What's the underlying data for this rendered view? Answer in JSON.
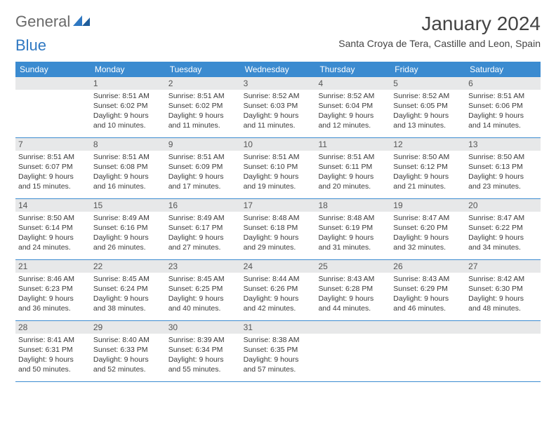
{
  "logo": {
    "part1": "General",
    "part2": "Blue"
  },
  "title": "January 2024",
  "location": "Santa Croya de Tera, Castille and Leon, Spain",
  "colors": {
    "header_bg": "#3b8bd0",
    "header_text": "#ffffff",
    "daynum_bg": "#e7e8e9",
    "daynum_text": "#555555",
    "body_text": "#3a3a3a",
    "rule": "#3b8bd0",
    "logo_gray": "#6a6a6a",
    "logo_blue": "#2f78c2"
  },
  "day_headers": [
    "Sunday",
    "Monday",
    "Tuesday",
    "Wednesday",
    "Thursday",
    "Friday",
    "Saturday"
  ],
  "weeks": [
    [
      {
        "n": "",
        "lines": []
      },
      {
        "n": "1",
        "lines": [
          "Sunrise: 8:51 AM",
          "Sunset: 6:02 PM",
          "Daylight: 9 hours",
          "and 10 minutes."
        ]
      },
      {
        "n": "2",
        "lines": [
          "Sunrise: 8:51 AM",
          "Sunset: 6:02 PM",
          "Daylight: 9 hours",
          "and 11 minutes."
        ]
      },
      {
        "n": "3",
        "lines": [
          "Sunrise: 8:52 AM",
          "Sunset: 6:03 PM",
          "Daylight: 9 hours",
          "and 11 minutes."
        ]
      },
      {
        "n": "4",
        "lines": [
          "Sunrise: 8:52 AM",
          "Sunset: 6:04 PM",
          "Daylight: 9 hours",
          "and 12 minutes."
        ]
      },
      {
        "n": "5",
        "lines": [
          "Sunrise: 8:52 AM",
          "Sunset: 6:05 PM",
          "Daylight: 9 hours",
          "and 13 minutes."
        ]
      },
      {
        "n": "6",
        "lines": [
          "Sunrise: 8:51 AM",
          "Sunset: 6:06 PM",
          "Daylight: 9 hours",
          "and 14 minutes."
        ]
      }
    ],
    [
      {
        "n": "7",
        "lines": [
          "Sunrise: 8:51 AM",
          "Sunset: 6:07 PM",
          "Daylight: 9 hours",
          "and 15 minutes."
        ]
      },
      {
        "n": "8",
        "lines": [
          "Sunrise: 8:51 AM",
          "Sunset: 6:08 PM",
          "Daylight: 9 hours",
          "and 16 minutes."
        ]
      },
      {
        "n": "9",
        "lines": [
          "Sunrise: 8:51 AM",
          "Sunset: 6:09 PM",
          "Daylight: 9 hours",
          "and 17 minutes."
        ]
      },
      {
        "n": "10",
        "lines": [
          "Sunrise: 8:51 AM",
          "Sunset: 6:10 PM",
          "Daylight: 9 hours",
          "and 19 minutes."
        ]
      },
      {
        "n": "11",
        "lines": [
          "Sunrise: 8:51 AM",
          "Sunset: 6:11 PM",
          "Daylight: 9 hours",
          "and 20 minutes."
        ]
      },
      {
        "n": "12",
        "lines": [
          "Sunrise: 8:50 AM",
          "Sunset: 6:12 PM",
          "Daylight: 9 hours",
          "and 21 minutes."
        ]
      },
      {
        "n": "13",
        "lines": [
          "Sunrise: 8:50 AM",
          "Sunset: 6:13 PM",
          "Daylight: 9 hours",
          "and 23 minutes."
        ]
      }
    ],
    [
      {
        "n": "14",
        "lines": [
          "Sunrise: 8:50 AM",
          "Sunset: 6:14 PM",
          "Daylight: 9 hours",
          "and 24 minutes."
        ]
      },
      {
        "n": "15",
        "lines": [
          "Sunrise: 8:49 AM",
          "Sunset: 6:16 PM",
          "Daylight: 9 hours",
          "and 26 minutes."
        ]
      },
      {
        "n": "16",
        "lines": [
          "Sunrise: 8:49 AM",
          "Sunset: 6:17 PM",
          "Daylight: 9 hours",
          "and 27 minutes."
        ]
      },
      {
        "n": "17",
        "lines": [
          "Sunrise: 8:48 AM",
          "Sunset: 6:18 PM",
          "Daylight: 9 hours",
          "and 29 minutes."
        ]
      },
      {
        "n": "18",
        "lines": [
          "Sunrise: 8:48 AM",
          "Sunset: 6:19 PM",
          "Daylight: 9 hours",
          "and 31 minutes."
        ]
      },
      {
        "n": "19",
        "lines": [
          "Sunrise: 8:47 AM",
          "Sunset: 6:20 PM",
          "Daylight: 9 hours",
          "and 32 minutes."
        ]
      },
      {
        "n": "20",
        "lines": [
          "Sunrise: 8:47 AM",
          "Sunset: 6:22 PM",
          "Daylight: 9 hours",
          "and 34 minutes."
        ]
      }
    ],
    [
      {
        "n": "21",
        "lines": [
          "Sunrise: 8:46 AM",
          "Sunset: 6:23 PM",
          "Daylight: 9 hours",
          "and 36 minutes."
        ]
      },
      {
        "n": "22",
        "lines": [
          "Sunrise: 8:45 AM",
          "Sunset: 6:24 PM",
          "Daylight: 9 hours",
          "and 38 minutes."
        ]
      },
      {
        "n": "23",
        "lines": [
          "Sunrise: 8:45 AM",
          "Sunset: 6:25 PM",
          "Daylight: 9 hours",
          "and 40 minutes."
        ]
      },
      {
        "n": "24",
        "lines": [
          "Sunrise: 8:44 AM",
          "Sunset: 6:26 PM",
          "Daylight: 9 hours",
          "and 42 minutes."
        ]
      },
      {
        "n": "25",
        "lines": [
          "Sunrise: 8:43 AM",
          "Sunset: 6:28 PM",
          "Daylight: 9 hours",
          "and 44 minutes."
        ]
      },
      {
        "n": "26",
        "lines": [
          "Sunrise: 8:43 AM",
          "Sunset: 6:29 PM",
          "Daylight: 9 hours",
          "and 46 minutes."
        ]
      },
      {
        "n": "27",
        "lines": [
          "Sunrise: 8:42 AM",
          "Sunset: 6:30 PM",
          "Daylight: 9 hours",
          "and 48 minutes."
        ]
      }
    ],
    [
      {
        "n": "28",
        "lines": [
          "Sunrise: 8:41 AM",
          "Sunset: 6:31 PM",
          "Daylight: 9 hours",
          "and 50 minutes."
        ]
      },
      {
        "n": "29",
        "lines": [
          "Sunrise: 8:40 AM",
          "Sunset: 6:33 PM",
          "Daylight: 9 hours",
          "and 52 minutes."
        ]
      },
      {
        "n": "30",
        "lines": [
          "Sunrise: 8:39 AM",
          "Sunset: 6:34 PM",
          "Daylight: 9 hours",
          "and 55 minutes."
        ]
      },
      {
        "n": "31",
        "lines": [
          "Sunrise: 8:38 AM",
          "Sunset: 6:35 PM",
          "Daylight: 9 hours",
          "and 57 minutes."
        ]
      },
      {
        "n": "",
        "lines": []
      },
      {
        "n": "",
        "lines": []
      },
      {
        "n": "",
        "lines": []
      }
    ]
  ]
}
